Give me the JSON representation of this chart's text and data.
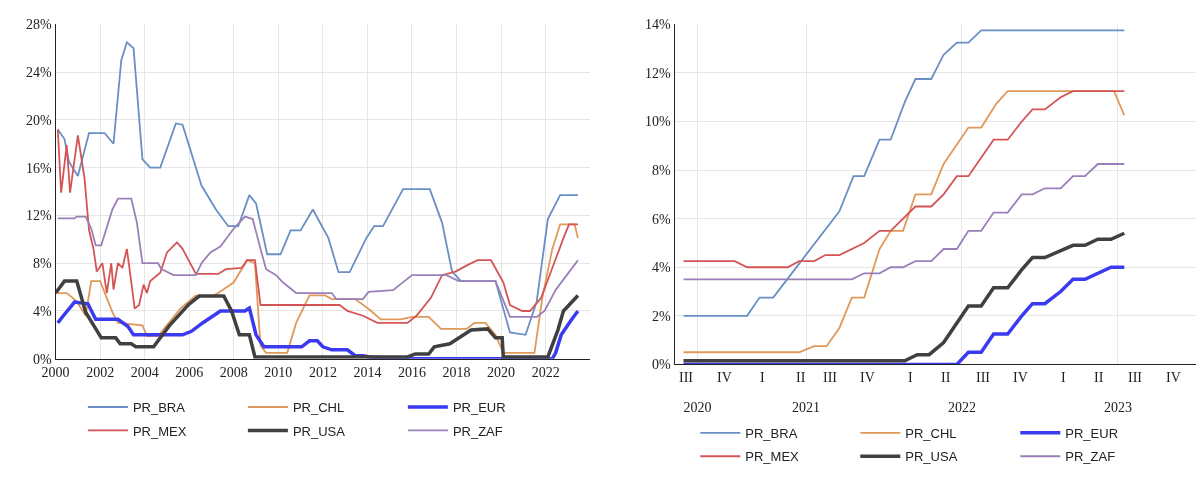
{
  "chart_data": [
    {
      "type": "line",
      "xlim": [
        2000,
        2024
      ],
      "xticks": [
        2000,
        2002,
        2004,
        2006,
        2008,
        2010,
        2012,
        2014,
        2016,
        2018,
        2020,
        2022
      ],
      "ylim": [
        0,
        28
      ],
      "yticks": [
        {
          "value": 0,
          "label": "0%"
        },
        {
          "value": 4,
          "label": "4%"
        },
        {
          "value": 8,
          "label": "8%"
        },
        {
          "value": 12,
          "label": "12%"
        },
        {
          "value": 16,
          "label": "16%"
        },
        {
          "value": 20,
          "label": "20%"
        },
        {
          "value": 24,
          "label": "24%"
        },
        {
          "value": 28,
          "label": "28%"
        }
      ],
      "grid": true,
      "legend": "bottom",
      "marker": "none",
      "line_style": "solid",
      "series": [
        {
          "name": "PR_BRA",
          "color": "#6a8fc4",
          "x": [
            2000.1,
            2000.4,
            2000.6,
            2001.0,
            2001.5,
            2002.2,
            2002.6,
            2002.95,
            2003.2,
            2003.5,
            2003.9,
            2004.25,
            2004.7,
            2005.4,
            2005.7,
            2006.55,
            2007.2,
            2007.75,
            2008.2,
            2008.7,
            2009.0,
            2009.5,
            2010.1,
            2010.55,
            2011.0,
            2011.55,
            2012.25,
            2012.7,
            2013.2,
            2013.95,
            2014.3,
            2014.7,
            2015.6,
            2016.8,
            2017.35,
            2017.8,
            2018.2,
            2019.75,
            2020.4,
            2021.1,
            2021.6,
            2022.1,
            2022.65,
            2023.45
          ],
          "values": [
            19.2,
            18.4,
            16.5,
            15.3,
            18.9,
            18.9,
            18,
            25,
            26.5,
            26,
            16.7,
            16,
            16,
            19.7,
            19.6,
            14.5,
            12.5,
            11.1,
            11.1,
            13.7,
            13,
            8.75,
            8.75,
            10.75,
            10.75,
            12.5,
            10.1,
            7.25,
            7.25,
            10.1,
            11.1,
            11.1,
            14.2,
            14.2,
            11.4,
            7.3,
            6.5,
            6.5,
            2.2,
            2,
            4.8,
            11.7,
            13.7,
            13.7
          ]
        },
        {
          "name": "PR_CHL",
          "color": "#e0995a",
          "x": [
            2000.1,
            2000.5,
            2000.95,
            2001.35,
            2001.6,
            2002.0,
            2002.55,
            2002.8,
            2003.9,
            2004.1,
            2004.6,
            2005.6,
            2006.3,
            2007.0,
            2007.3,
            2008.0,
            2008.6,
            2008.95,
            2009.2,
            2009.45,
            2010.4,
            2010.8,
            2011.4,
            2012.1,
            2012.4,
            2013.45,
            2014.1,
            2014.6,
            2015.5,
            2016.0,
            2016.75,
            2017.3,
            2018.45,
            2018.8,
            2019.3,
            2019.75,
            2020.1,
            2021.5,
            2021.85,
            2022.3,
            2022.65,
            2023.3,
            2023.45
          ],
          "values": [
            5.5,
            5.5,
            4.8,
            3.6,
            6.5,
            6.5,
            3.9,
            3,
            2.8,
            1.9,
            1.9,
            4.2,
            5.3,
            5.2,
            5.5,
            6.4,
            8.25,
            8,
            1.1,
            0.5,
            0.5,
            3,
            5.3,
            5.3,
            5,
            5,
            4.1,
            3.3,
            3.3,
            3.5,
            3.5,
            2.5,
            2.5,
            3,
            3,
            2,
            0.5,
            0.5,
            5.1,
            9.2,
            11.25,
            11.25,
            10.1
          ]
        },
        {
          "name": "PR_EUR",
          "color": "#3a3af0",
          "x": [
            2000.1,
            2000.35,
            2000.85,
            2001.45,
            2001.8,
            2002.8,
            2003.25,
            2003.5,
            2005.7,
            2006.1,
            2006.6,
            2007.4,
            2008.5,
            2008.7,
            2009.0,
            2009.35,
            2011.05,
            2011.4,
            2011.75,
            2012.0,
            2012.4,
            2013.1,
            2013.45,
            2013.8,
            2014.1,
            2015.8,
            2022.3,
            2022.45,
            2022.7,
            2023.15,
            2023.45
          ],
          "values": [
            3,
            3.6,
            4.75,
            4.6,
            3.3,
            3.3,
            2.7,
            2,
            2,
            2.3,
            3,
            4,
            4,
            4.25,
            2,
            1,
            1,
            1.5,
            1.5,
            1,
            0.75,
            0.75,
            0.25,
            0.25,
            0.15,
            0,
            0,
            0.5,
            2,
            3.25,
            4
          ]
        },
        {
          "name": "PR_MEX",
          "color": "#d45555",
          "x": [
            2000.1,
            2000.25,
            2000.5,
            2000.65,
            2001.0,
            2001.3,
            2001.5,
            2001.7,
            2001.85,
            2002.1,
            2002.3,
            2002.5,
            2002.6,
            2002.8,
            2003.0,
            2003.2,
            2003.4,
            2003.55,
            2003.75,
            2003.95,
            2004.1,
            2004.25,
            2004.7,
            2005.0,
            2005.45,
            2005.7,
            2006.3,
            2007.3,
            2007.65,
            2008.35,
            2008.6,
            2008.95,
            2009.2,
            2012.75,
            2013.1,
            2013.8,
            2014.45,
            2015.8,
            2016.2,
            2016.85,
            2017.35,
            2017.95,
            2018.55,
            2018.95,
            2019.55,
            2020.1,
            2020.4,
            2020.95,
            2021.3,
            2021.8,
            2022.3,
            2022.8,
            2023.05,
            2023.45
          ],
          "values": [
            19.2,
            13.9,
            17.9,
            13.9,
            18.7,
            15.1,
            10.8,
            9.2,
            7.3,
            8,
            5.5,
            8,
            5.8,
            8,
            7.6,
            9.2,
            6.4,
            4.2,
            4.5,
            6.2,
            5.5,
            6.5,
            7.2,
            8.9,
            9.75,
            9.2,
            7.1,
            7.1,
            7.5,
            7.6,
            8.25,
            8.25,
            4.5,
            4.5,
            4,
            3.6,
            3,
            3,
            3.6,
            5.1,
            7,
            7.3,
            7.9,
            8.25,
            8.25,
            6.4,
            4.5,
            4,
            4,
            5.1,
            7.6,
            10.1,
            11.25,
            11.25
          ]
        },
        {
          "name": "PR_USA",
          "color": "#404040",
          "x": [
            2000.0,
            2000.4,
            2000.95,
            2001.35,
            2002.05,
            2002.7,
            2002.9,
            2003.4,
            2003.6,
            2004.4,
            2005.1,
            2005.95,
            2006.45,
            2007.55,
            2007.9,
            2008.25,
            2008.7,
            2008.95,
            2015.8,
            2016.15,
            2016.75,
            2017.0,
            2017.7,
            2018.65,
            2019.4,
            2019.75,
            2020.05,
            2020.1,
            2022.1,
            2022.55,
            2022.8,
            2023.45
          ],
          "values": [
            5.5,
            6.5,
            6.5,
            3.9,
            1.75,
            1.75,
            1.25,
            1.25,
            1,
            1,
            2.75,
            4.5,
            5.25,
            5.25,
            4,
            2,
            2,
            0.15,
            0.15,
            0.4,
            0.4,
            1,
            1.25,
            2.4,
            2.5,
            1.75,
            1.75,
            0.15,
            0.15,
            2.4,
            4,
            5.3
          ]
        },
        {
          "name": "PR_ZAF",
          "color": "#9a80b8",
          "x": [
            2000.1,
            2000.85,
            2000.95,
            2001.35,
            2001.6,
            2001.8,
            2002.05,
            2002.55,
            2002.8,
            2003.4,
            2003.65,
            2003.9,
            2004.6,
            2004.75,
            2005.3,
            2006.3,
            2006.55,
            2006.95,
            2007.4,
            2008.0,
            2008.5,
            2008.85,
            2009.2,
            2009.45,
            2009.9,
            2010.2,
            2010.8,
            2012.4,
            2012.6,
            2013.8,
            2014.05,
            2015.15,
            2016.0,
            2017.55,
            2018.1,
            2019.75,
            2020.25,
            2020.4,
            2021.6,
            2021.95,
            2022.45,
            2022.95,
            2023.45
          ],
          "values": [
            11.75,
            11.75,
            11.9,
            11.9,
            10.9,
            9.5,
            9.5,
            12.5,
            13.4,
            13.4,
            11.4,
            8,
            8,
            7.5,
            7,
            7,
            8,
            8.9,
            9.4,
            10.9,
            11.9,
            11.7,
            9.2,
            7.5,
            7,
            6.4,
            5.5,
            5.5,
            5,
            5,
            5.6,
            5.75,
            7,
            7,
            6.5,
            6.5,
            4.2,
            3.5,
            3.5,
            4,
            5.75,
            7,
            8.25
          ]
        }
      ]
    },
    {
      "type": "line",
      "xlim": [
        "2020-08-27",
        "2023-12-31"
      ],
      "annotations": [
        "III",
        "IV",
        "I",
        "II",
        "III",
        "IV",
        "I",
        "II",
        "III",
        "IV",
        "I",
        "II",
        "III",
        "IV"
      ],
      "xticks": [
        {
          "value": "2020-10-20",
          "label": "2020"
        },
        {
          "value": "2021-07-01",
          "label": "2021"
        },
        {
          "value": "2022-07-01",
          "label": "2022"
        },
        {
          "value": "2023-07-01",
          "label": "2023"
        }
      ],
      "ylim": [
        0,
        14
      ],
      "yticks": [
        {
          "value": 0,
          "label": "0%"
        },
        {
          "value": 2,
          "label": "2%"
        },
        {
          "value": 4,
          "label": "4%"
        },
        {
          "value": 6,
          "label": "6%"
        },
        {
          "value": 8,
          "label": "8%"
        },
        {
          "value": 10,
          "label": "10%"
        },
        {
          "value": 12,
          "label": "12%"
        },
        {
          "value": 14,
          "label": "14%"
        }
      ],
      "grid": true,
      "legend": "bottom",
      "marker": "none",
      "line_style": "solid",
      "series": [
        {
          "name": "PR_BRA",
          "color": "#6a8fc4",
          "x": [
            "2020-09-17",
            "2021-02-13",
            "2021-03-14",
            "2021-04-15",
            "2021-06-15",
            "2021-09-17",
            "2021-10-20",
            "2021-11-14",
            "2021-12-20",
            "2022-01-15",
            "2022-02-17",
            "2022-03-14",
            "2022-04-20",
            "2022-05-19",
            "2022-06-19",
            "2022-07-16",
            "2022-08-15",
            "2023-07-16"
          ],
          "values": [
            2,
            2,
            2.75,
            2.75,
            4.15,
            6.3,
            7.75,
            7.75,
            9.25,
            9.25,
            10.8,
            11.75,
            11.75,
            12.75,
            13.25,
            13.25,
            13.75,
            13.75
          ]
        },
        {
          "name": "PR_CHL",
          "color": "#e0995a",
          "x": [
            "2020-09-17",
            "2021-06-15",
            "2021-07-20",
            "2021-08-18",
            "2021-09-17",
            "2021-10-16",
            "2021-11-14",
            "2021-12-20",
            "2022-01-15",
            "2022-02-13",
            "2022-03-14",
            "2022-04-20",
            "2022-05-19",
            "2022-07-16",
            "2022-08-15",
            "2022-09-20",
            "2022-10-16",
            "2023-06-22",
            "2023-07-16"
          ],
          "values": [
            0.5,
            0.5,
            0.75,
            0.75,
            1.5,
            2.75,
            2.75,
            4.75,
            5.5,
            5.5,
            7,
            7,
            8.25,
            9.75,
            9.75,
            10.75,
            11.25,
            11.25,
            10.25
          ]
        },
        {
          "name": "PR_EUR",
          "color": "#3a3af0",
          "x": [
            "2020-09-17",
            "2022-06-19",
            "2022-07-16",
            "2022-08-15",
            "2022-09-13",
            "2022-10-16",
            "2022-11-18",
            "2022-12-13",
            "2023-01-11",
            "2023-02-17",
            "2023-03-18",
            "2023-04-15",
            "2023-06-15",
            "2023-07-16"
          ],
          "values": [
            0,
            0,
            0.5,
            0.5,
            1.25,
            1.25,
            2,
            2.5,
            2.5,
            3,
            3.5,
            3.5,
            4,
            4
          ]
        },
        {
          "name": "PR_MEX",
          "color": "#d45555",
          "x": [
            "2020-09-17",
            "2021-01-15",
            "2021-02-13",
            "2021-05-19",
            "2021-06-15",
            "2021-07-20",
            "2021-08-15",
            "2021-09-17",
            "2021-11-14",
            "2021-12-20",
            "2022-01-15",
            "2022-03-14",
            "2022-04-20",
            "2022-05-19",
            "2022-06-19",
            "2022-07-16",
            "2022-09-13",
            "2022-10-16",
            "2022-11-18",
            "2022-12-13",
            "2023-01-11",
            "2023-02-17",
            "2023-03-18",
            "2023-07-16"
          ],
          "values": [
            4.25,
            4.25,
            4,
            4,
            4.25,
            4.25,
            4.5,
            4.5,
            5,
            5.5,
            5.5,
            6.5,
            6.5,
            7,
            7.75,
            7.75,
            9.25,
            9.25,
            10,
            10.5,
            10.5,
            11,
            11.25,
            11.25
          ]
        },
        {
          "name": "PR_USA",
          "color": "#404040",
          "x": [
            "2020-09-17",
            "2022-02-17",
            "2022-03-18",
            "2022-04-15",
            "2022-05-19",
            "2022-07-16",
            "2022-08-15",
            "2022-09-13",
            "2022-10-16",
            "2022-11-18",
            "2022-12-13",
            "2023-01-11",
            "2023-03-18",
            "2023-04-15",
            "2023-05-15",
            "2023-06-15",
            "2023-07-16"
          ],
          "values": [
            0.15,
            0.15,
            0.4,
            0.4,
            0.9,
            2.4,
            2.4,
            3.15,
            3.15,
            3.9,
            4.4,
            4.4,
            4.9,
            4.9,
            5.15,
            5.15,
            5.4
          ]
        },
        {
          "name": "PR_ZAF",
          "color": "#9a80b8",
          "x": [
            "2020-09-17",
            "2021-10-16",
            "2021-11-14",
            "2021-12-20",
            "2022-01-15",
            "2022-02-13",
            "2022-03-14",
            "2022-04-20",
            "2022-05-19",
            "2022-06-19",
            "2022-07-16",
            "2022-08-15",
            "2022-09-13",
            "2022-10-16",
            "2022-11-18",
            "2022-12-13",
            "2023-01-11",
            "2023-02-17",
            "2023-03-18",
            "2023-04-15",
            "2023-05-15",
            "2023-07-16"
          ],
          "values": [
            3.5,
            3.5,
            3.75,
            3.75,
            4,
            4,
            4.25,
            4.25,
            4.75,
            4.75,
            5.5,
            5.5,
            6.25,
            6.25,
            7,
            7,
            7.25,
            7.25,
            7.75,
            7.75,
            8.25,
            8.25
          ]
        }
      ]
    }
  ]
}
